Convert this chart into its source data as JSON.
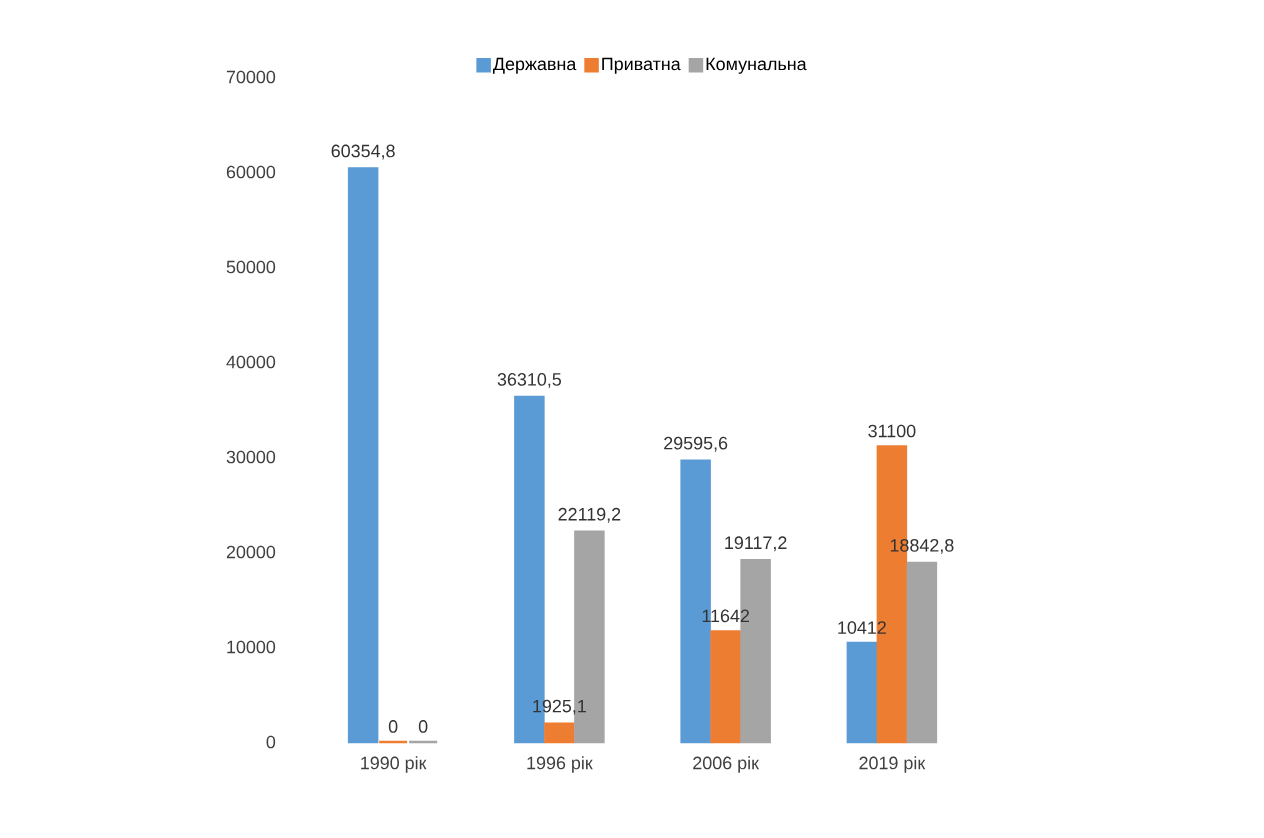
{
  "chart_data": {
    "type": "bar",
    "categories": [
      "1990 рік",
      "1996 рік",
      "2006 рік",
      "2019 рік"
    ],
    "series": [
      {
        "name": "Державна",
        "color": "#5b9bd5",
        "values": [
          60354.8,
          36310.5,
          29595.6,
          10412
        ],
        "value_labels": [
          "60354,8",
          "36310,5",
          "29595,6",
          "10412"
        ]
      },
      {
        "name": "Приватна",
        "color": "#ed7d31",
        "values": [
          0,
          1925.1,
          11642,
          31100
        ],
        "value_labels": [
          "0",
          "1925,1",
          "11642",
          "31100"
        ]
      },
      {
        "name": "Комунальна",
        "color": "#a5a5a5",
        "values": [
          0,
          22119.2,
          19117.2,
          18842.8
        ],
        "value_labels": [
          "0",
          "22119,2",
          "19117,2",
          "18842,8"
        ]
      }
    ],
    "ylim": [
      0,
      70000
    ],
    "yticks": [
      0,
      10000,
      20000,
      30000,
      40000,
      50000,
      60000,
      70000
    ],
    "legend": "top",
    "grid": false
  }
}
